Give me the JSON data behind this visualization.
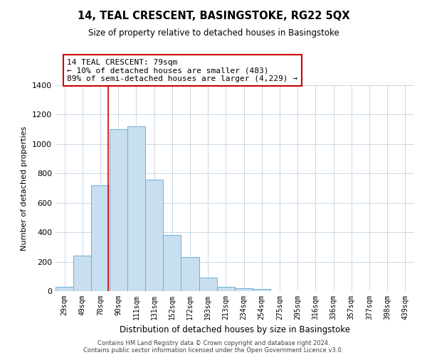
{
  "title": "14, TEAL CRESCENT, BASINGSTOKE, RG22 5QX",
  "subtitle": "Size of property relative to detached houses in Basingstoke",
  "xlabel": "Distribution of detached houses by size in Basingstoke",
  "ylabel": "Number of detached properties",
  "bar_labels": [
    "29sqm",
    "49sqm",
    "70sqm",
    "90sqm",
    "111sqm",
    "131sqm",
    "152sqm",
    "172sqm",
    "193sqm",
    "213sqm",
    "234sqm",
    "254sqm",
    "275sqm",
    "295sqm",
    "316sqm",
    "336sqm",
    "357sqm",
    "377sqm",
    "398sqm",
    "439sqm"
  ],
  "bar_heights": [
    30,
    240,
    720,
    1100,
    1120,
    760,
    380,
    230,
    90,
    30,
    20,
    15,
    0,
    0,
    0,
    0,
    0,
    0,
    0,
    0
  ],
  "bar_color": "#c8dff0",
  "bar_edge_color": "#6dafd6",
  "property_line_x": 2.45,
  "annotation_text": "14 TEAL CRESCENT: 79sqm\n← 10% of detached houses are smaller (483)\n89% of semi-detached houses are larger (4,229) →",
  "annotation_box_color": "#ffffff",
  "annotation_border_color": "#cc0000",
  "property_line_color": "#cc0000",
  "ylim": [
    0,
    1400
  ],
  "yticks": [
    0,
    200,
    400,
    600,
    800,
    1000,
    1200,
    1400
  ],
  "footer1": "Contains HM Land Registry data © Crown copyright and database right 2024.",
  "footer2": "Contains public sector information licensed under the Open Government Licence v3.0.",
  "background_color": "#ffffff",
  "grid_color": "#c8d8e8"
}
